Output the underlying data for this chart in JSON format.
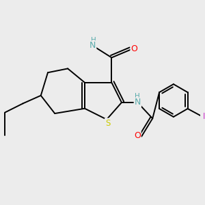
{
  "bg_color": "#ececec",
  "atom_colors": {
    "C": "#000000",
    "N": "#5aacac",
    "O": "#ff0000",
    "S": "#cccc00",
    "I": "#cc33cc",
    "H": "#5aacac"
  },
  "bond_color": "#000000",
  "figsize": [
    3.0,
    3.0
  ],
  "dpi": 100
}
